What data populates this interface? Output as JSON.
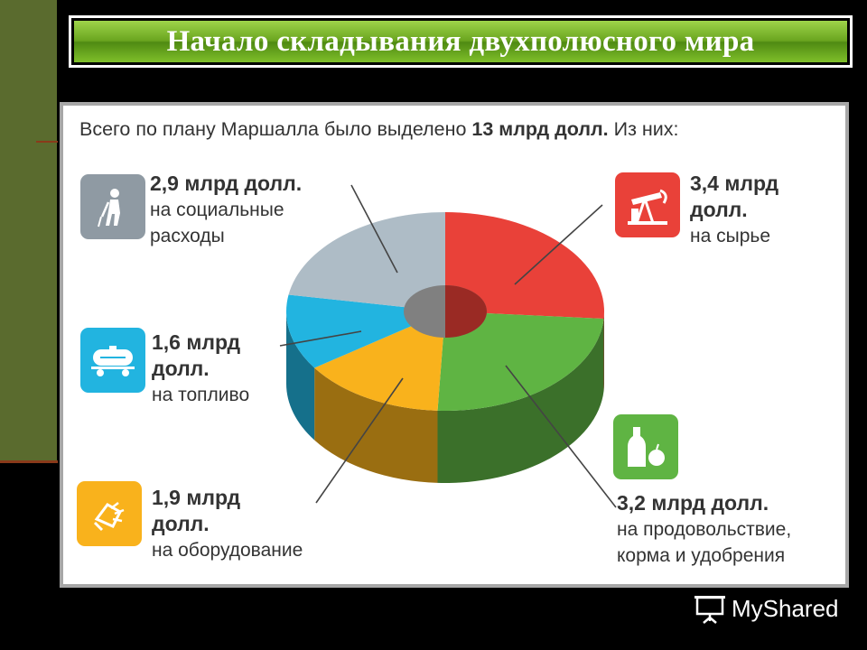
{
  "title": "Начало складывания двухполюсного мира",
  "heading": {
    "prefix": "Всего по плану Маршалла было выделено ",
    "total": "13 млрд долл.",
    "suffix": " Из них:"
  },
  "colors": {
    "raw": "#e94139",
    "food": "#5fb443",
    "equipment": "#f9b21c",
    "fuel": "#22b4e0",
    "social": "#aebcc6",
    "title_green": "#6aa51f"
  },
  "categories": [
    {
      "key": "raw",
      "icon": "oil-pump-icon",
      "value": 3.4,
      "lines": [
        "3,4 млрд",
        "долл."
      ],
      "desc": [
        "на сырье"
      ]
    },
    {
      "key": "food",
      "icon": "bottle-apple-icon",
      "value": 3.2,
      "lines": [
        "3,2 млрд долл."
      ],
      "desc": [
        "на продовольствие,",
        "корма и удобрения"
      ]
    },
    {
      "key": "equipment",
      "icon": "drill-icon",
      "value": 1.9,
      "lines": [
        "1,9 млрд",
        "долл."
      ],
      "desc": [
        "на оборудование"
      ]
    },
    {
      "key": "fuel",
      "icon": "tank-car-icon",
      "value": 1.6,
      "lines": [
        "1,6 млрд",
        "долл."
      ],
      "desc": [
        "на топливо"
      ]
    },
    {
      "key": "social",
      "icon": "elderly-person-icon",
      "value": 2.9,
      "lines": [
        "2,9 млрд долл."
      ],
      "desc": [
        "на социальные",
        "расходы"
      ]
    }
  ],
  "chart_data": {
    "type": "pie",
    "title": "Всего по плану Маршалла было выделено 13 млрд долл. Из них:",
    "unit": "млрд долл.",
    "total": 13,
    "slices": [
      {
        "label": "на сырье",
        "value": 3.4
      },
      {
        "label": "на продовольствие, корма и удобрения",
        "value": 3.2
      },
      {
        "label": "на оборудование",
        "value": 1.9
      },
      {
        "label": "на топливо",
        "value": 1.6
      },
      {
        "label": "на социальные расходы",
        "value": 2.9
      }
    ]
  },
  "watermark": "MyShared"
}
